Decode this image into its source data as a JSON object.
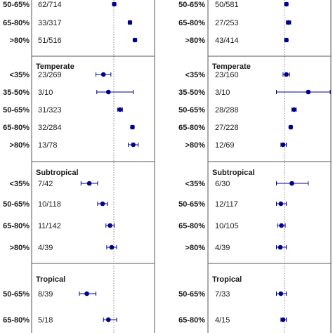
{
  "chart_data": {
    "type": "forest",
    "mark_color": "#00008b",
    "reference_line": "dotted vertical",
    "panels": [
      {
        "groups": [
          {
            "label": "",
            "rows": [
              {
                "category": "50-65%",
                "count": "62/714",
                "est": 0.265,
                "lo": 0.255,
                "hi": 0.275
              },
              {
                "category": "65-80%",
                "count": "33/317",
                "est": 0.36,
                "lo": 0.35,
                "hi": 0.37
              },
              {
                "category": ">80%",
                "count": "51/516",
                "est": 0.39,
                "lo": 0.38,
                "hi": 0.4
              }
            ]
          },
          {
            "label": "Temperate",
            "rows": [
              {
                "category": "<35%",
                "count": "23/269",
                "est": 0.2,
                "lo": 0.155,
                "hi": 0.245
              },
              {
                "category": "35-50%",
                "count": "3/10",
                "est": 0.23,
                "lo": 0.16,
                "hi": 0.38
              },
              {
                "category": "50-65%",
                "count": "31/323",
                "est": 0.3,
                "lo": 0.285,
                "hi": 0.315
              },
              {
                "category": "65-80%",
                "count": "32/284",
                "est": 0.375,
                "lo": 0.365,
                "hi": 0.385
              },
              {
                "category": ">80%",
                "count": "13/78",
                "est": 0.38,
                "lo": 0.35,
                "hi": 0.41
              }
            ]
          },
          {
            "label": "Subtropical",
            "rows": [
              {
                "category": "<35%",
                "count": "7/42",
                "est": 0.115,
                "lo": 0.065,
                "hi": 0.165
              },
              {
                "category": "50-65%",
                "count": "10/118",
                "est": 0.195,
                "lo": 0.165,
                "hi": 0.225
              },
              {
                "category": "65-80%",
                "count": "11/142",
                "est": 0.24,
                "lo": 0.215,
                "hi": 0.265
              },
              {
                "category": ">80%",
                "count": "4/39",
                "est": 0.25,
                "lo": 0.22,
                "hi": 0.28
              }
            ]
          },
          {
            "label": "Tropical",
            "rows": [
              {
                "category": "50-65%",
                "count": "8/39",
                "est": 0.1,
                "lo": 0.055,
                "hi": 0.155
              },
              {
                "category": "65-80%",
                "count": "5/18",
                "est": 0.23,
                "lo": 0.2,
                "hi": 0.28
              }
            ]
          }
        ]
      },
      {
        "groups": [
          {
            "label": "",
            "rows": [
              {
                "category": "50-65%",
                "count": "50/581",
                "est": 0.1,
                "lo": 0.085,
                "hi": 0.115
              },
              {
                "category": "65-80%",
                "count": "27/253",
                "est": 0.12,
                "lo": 0.1,
                "hi": 0.14
              },
              {
                "category": ">80%",
                "count": "43/414",
                "est": 0.1,
                "lo": 0.085,
                "hi": 0.115
              }
            ]
          },
          {
            "label": "Temperate",
            "rows": [
              {
                "category": "<35%",
                "count": "23/160",
                "est": 0.1,
                "lo": 0.07,
                "hi": 0.13
              },
              {
                "category": "35-50%",
                "count": "3/10",
                "est": 0.3,
                "lo": 0.01,
                "hi": 0.5
              },
              {
                "category": "50-65%",
                "count": "28/288",
                "est": 0.17,
                "lo": 0.15,
                "hi": 0.19
              },
              {
                "category": "65-80%",
                "count": "27/228",
                "est": 0.14,
                "lo": 0.125,
                "hi": 0.155
              },
              {
                "category": ">80%",
                "count": "12/69",
                "est": 0.07,
                "lo": 0.05,
                "hi": 0.1
              }
            ]
          },
          {
            "label": "Subtropical",
            "rows": [
              {
                "category": "<35%",
                "count": "6/30",
                "est": 0.15,
                "lo": 0.01,
                "hi": 0.3
              },
              {
                "category": "50-65%",
                "count": "12/117",
                "est": 0.05,
                "lo": 0.01,
                "hi": 0.1
              },
              {
                "category": "65-80%",
                "count": "10/105",
                "est": 0.055,
                "lo": 0.02,
                "hi": 0.09
              },
              {
                "category": ">80%",
                "count": "4/39",
                "est": 0.045,
                "lo": 0.01,
                "hi": 0.1
              }
            ]
          },
          {
            "label": "Tropical",
            "rows": [
              {
                "category": "50-65%",
                "count": "7/33",
                "est": 0.05,
                "lo": 0.01,
                "hi": 0.1
              },
              {
                "category": "65-80%",
                "count": "4/15",
                "est": 0.07,
                "lo": 0.05,
                "hi": 0.1
              }
            ]
          }
        ]
      }
    ]
  }
}
